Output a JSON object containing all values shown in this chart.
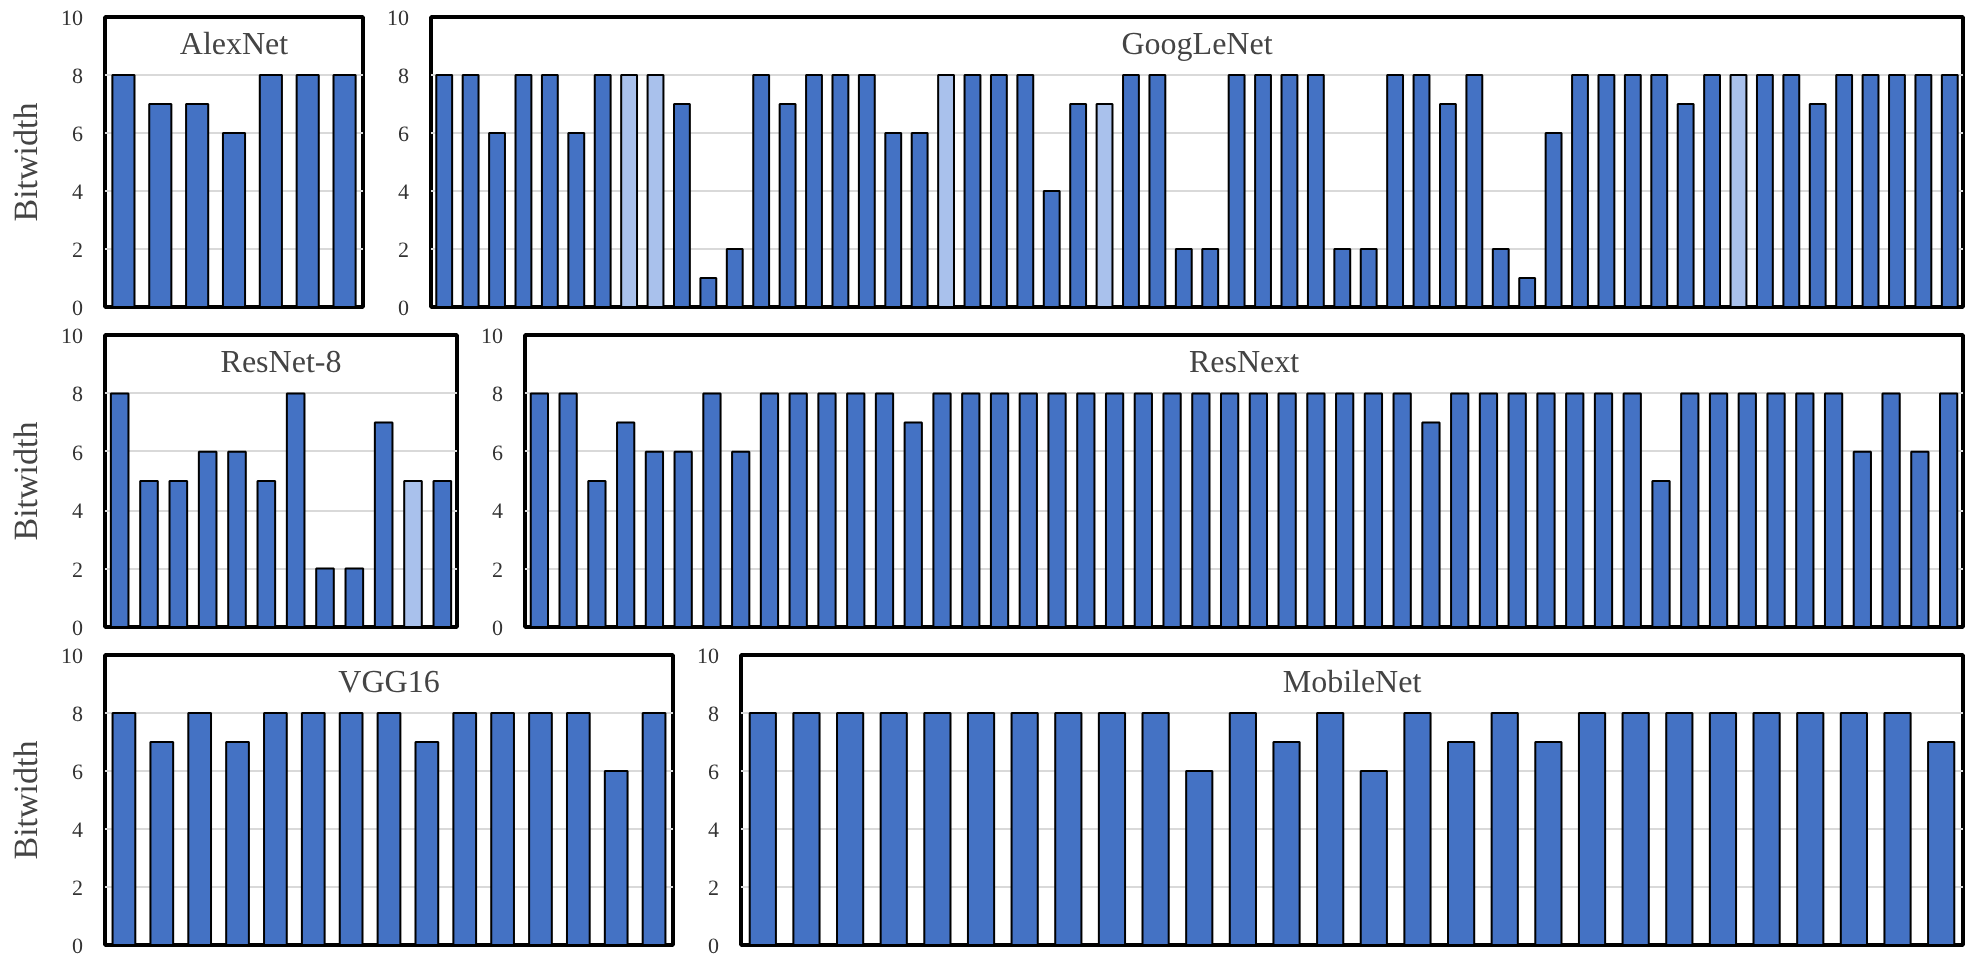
{
  "chart_data": [
    {
      "type": "bar",
      "title": "AlexNet",
      "ylabel": "Bitwidth",
      "categories": [
        null,
        null,
        null,
        null,
        null,
        null,
        null
      ],
      "values": [
        8,
        7,
        7,
        6,
        8,
        8,
        8
      ],
      "color": "#4472c4",
      "ylim": [
        0,
        10
      ],
      "yticks": [
        0,
        2,
        4,
        6,
        8,
        10
      ],
      "grid": "y",
      "tick_labels": "y"
    },
    {
      "type": "bar",
      "title": "GoogLeNet",
      "categories": [
        null,
        null,
        null,
        null,
        null,
        null,
        null,
        null,
        null,
        null,
        null,
        null,
        null,
        null,
        null,
        null,
        null,
        null,
        null,
        null,
        null,
        null,
        null,
        null,
        null,
        null,
        null,
        null,
        null,
        null,
        null,
        null,
        null,
        null,
        null,
        null,
        null,
        null,
        null,
        null,
        null,
        null,
        null,
        null,
        null,
        null,
        null,
        null,
        null,
        null,
        null,
        null,
        null,
        null,
        null,
        null,
        null,
        null
      ],
      "values": [
        8,
        8,
        6,
        8,
        8,
        6,
        8,
        8,
        8,
        7,
        1,
        2,
        8,
        7,
        8,
        8,
        8,
        6,
        6,
        8,
        8,
        8,
        8,
        4,
        7,
        7,
        8,
        8,
        2,
        2,
        8,
        8,
        8,
        8,
        2,
        2,
        8,
        8,
        7,
        8,
        2,
        1,
        6,
        8,
        8,
        8,
        8,
        7,
        8,
        8,
        8,
        8,
        7,
        8,
        8,
        8,
        8,
        8
      ],
      "colors": [
        "#4472c4",
        "#4472c4",
        "#4472c4",
        "#4472c4",
        "#4472c4",
        "#4472c4",
        "#4472c4",
        "#a9c1ec",
        "#a9c1ec",
        "#4472c4",
        "#4472c4",
        "#4472c4",
        "#4472c4",
        "#4472c4",
        "#4472c4",
        "#4472c4",
        "#4472c4",
        "#4472c4",
        "#4472c4",
        "#a9c1ec",
        "#4472c4",
        "#4472c4",
        "#4472c4",
        "#4472c4",
        "#4472c4",
        "#a9c1ec",
        "#4472c4",
        "#4472c4",
        "#4472c4",
        "#4472c4",
        "#4472c4",
        "#4472c4",
        "#4472c4",
        "#4472c4",
        "#4472c4",
        "#4472c4",
        "#4472c4",
        "#4472c4",
        "#4472c4",
        "#4472c4",
        "#4472c4",
        "#4472c4",
        "#4472c4",
        "#4472c4",
        "#4472c4",
        "#4472c4",
        "#4472c4",
        "#4472c4",
        "#4472c4",
        "#a9c1ec",
        "#4472c4",
        "#4472c4",
        "#4472c4",
        "#4472c4",
        "#4472c4",
        "#4472c4",
        "#4472c4",
        "#4472c4"
      ],
      "ylim": [
        0,
        10
      ],
      "yticks": [
        0,
        2,
        4,
        6,
        8,
        10
      ],
      "grid": "y",
      "tick_labels": "y"
    },
    {
      "type": "bar",
      "title": "ResNet-8",
      "ylabel": "Bitwidth",
      "categories": [
        null,
        null,
        null,
        null,
        null,
        null,
        null,
        null,
        null,
        null,
        null,
        null
      ],
      "values": [
        8,
        5,
        5,
        6,
        6,
        5,
        8,
        2,
        2,
        7,
        5,
        5
      ],
      "colors": [
        "#4472c4",
        "#4472c4",
        "#4472c4",
        "#4472c4",
        "#4472c4",
        "#4472c4",
        "#4472c4",
        "#4472c4",
        "#4472c4",
        "#4472c4",
        "#a9c1ec",
        "#4472c4"
      ],
      "ylim": [
        0,
        10
      ],
      "yticks": [
        0,
        2,
        4,
        6,
        8,
        10
      ],
      "grid": "y",
      "tick_labels": "y"
    },
    {
      "type": "bar",
      "title": "ResNext",
      "categories": [
        null,
        null,
        null,
        null,
        null,
        null,
        null,
        null,
        null,
        null,
        null,
        null,
        null,
        null,
        null,
        null,
        null,
        null,
        null,
        null,
        null,
        null,
        null,
        null,
        null,
        null,
        null,
        null,
        null,
        null,
        null,
        null,
        null,
        null,
        null,
        null,
        null,
        null,
        null,
        null,
        null,
        null,
        null,
        null,
        null,
        null,
        null,
        null,
        null,
        null
      ],
      "values": [
        8,
        8,
        5,
        7,
        6,
        6,
        8,
        6,
        8,
        8,
        8,
        8,
        8,
        7,
        8,
        8,
        8,
        8,
        8,
        8,
        8,
        8,
        8,
        8,
        8,
        8,
        8,
        8,
        8,
        8,
        8,
        7,
        8,
        8,
        8,
        8,
        8,
        8,
        8,
        5,
        8,
        8,
        8,
        8,
        8,
        8,
        6,
        8,
        6,
        8
      ],
      "color": "#4472c4",
      "ylim": [
        0,
        10
      ],
      "yticks": [
        0,
        2,
        4,
        6,
        8,
        10
      ],
      "grid": "y",
      "tick_labels": "y"
    },
    {
      "type": "bar",
      "title": "VGG16",
      "ylabel": "Bitwidth",
      "categories": [
        null,
        null,
        null,
        null,
        null,
        null,
        null,
        null,
        null,
        null,
        null,
        null,
        null,
        null,
        null
      ],
      "values": [
        8,
        7,
        8,
        7,
        8,
        8,
        8,
        8,
        7,
        8,
        8,
        8,
        8,
        6,
        8
      ],
      "color": "#4472c4",
      "ylim": [
        0,
        10
      ],
      "yticks": [
        0,
        2,
        4,
        6,
        8,
        10
      ],
      "grid": "y",
      "tick_labels": "y"
    },
    {
      "type": "bar",
      "title": "MobileNet",
      "categories": [
        null,
        null,
        null,
        null,
        null,
        null,
        null,
        null,
        null,
        null,
        null,
        null,
        null,
        null,
        null,
        null,
        null,
        null,
        null,
        null,
        null,
        null,
        null,
        null,
        null,
        null,
        null,
        null
      ],
      "values": [
        8,
        8,
        8,
        8,
        8,
        8,
        8,
        8,
        8,
        8,
        6,
        8,
        7,
        8,
        6,
        8,
        7,
        8,
        7,
        8,
        8,
        8,
        8,
        8,
        8,
        8,
        8,
        7
      ],
      "color": "#4472c4",
      "ylim": [
        0,
        10
      ],
      "yticks": [
        0,
        2,
        4,
        6,
        8,
        10
      ],
      "grid": "y",
      "tick_labels": "y"
    }
  ]
}
